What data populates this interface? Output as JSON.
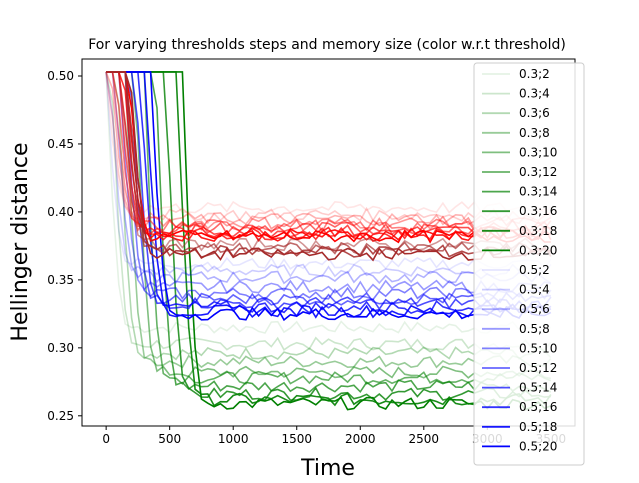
{
  "chart_data": {
    "type": "line",
    "title": "For varying thresholds steps and memory size (color w.r.t threshold)",
    "xlabel": "Time",
    "ylabel": "Hellinger distance",
    "xlim": [
      -190,
      3690
    ],
    "ylim": [
      0.2425,
      0.5125
    ],
    "x_ticks": [
      0,
      500,
      1000,
      1500,
      2000,
      2500,
      3000,
      3500
    ],
    "x_tick_labels": [
      "0",
      "500",
      "1000",
      "1500",
      "2000",
      "2500",
      "3000",
      "3500"
    ],
    "y_ticks": [
      0.25,
      0.3,
      0.35,
      0.4,
      0.45,
      0.5
    ],
    "y_tick_labels": [
      "0.25",
      "0.30",
      "0.35",
      "0.40",
      "0.45",
      "0.50"
    ],
    "grid": false,
    "legend_position": "upper-right",
    "x_range": [
      0,
      3500
    ],
    "point_step": 50,
    "start_value": 0.503,
    "series": [
      {
        "name": "0.3;2",
        "color": "#008000",
        "alpha": 0.1,
        "drop_time": 0,
        "plateau": 0.315
      },
      {
        "name": "0.3;4",
        "color": "#008000",
        "alpha": 0.2,
        "drop_time": 40,
        "plateau": 0.303
      },
      {
        "name": "0.3;6",
        "color": "#008000",
        "alpha": 0.3,
        "drop_time": 90,
        "plateau": 0.296
      },
      {
        "name": "0.3;8",
        "color": "#008000",
        "alpha": 0.4,
        "drop_time": 150,
        "plateau": 0.29
      },
      {
        "name": "0.3;10",
        "color": "#008000",
        "alpha": 0.5,
        "drop_time": 230,
        "plateau": 0.282
      },
      {
        "name": "0.3;12",
        "color": "#008000",
        "alpha": 0.6,
        "drop_time": 300,
        "plateau": 0.278
      },
      {
        "name": "0.3;14",
        "color": "#008000",
        "alpha": 0.7,
        "drop_time": 390,
        "plateau": 0.272
      },
      {
        "name": "0.3;16",
        "color": "#008000",
        "alpha": 0.8,
        "drop_time": 470,
        "plateau": 0.266
      },
      {
        "name": "0.3;18",
        "color": "#008000",
        "alpha": 0.9,
        "drop_time": 560,
        "plateau": 0.262
      },
      {
        "name": "0.3;20",
        "color": "#008000",
        "alpha": 1.0,
        "drop_time": 600,
        "plateau": 0.259
      },
      {
        "name": "0.5;2",
        "color": "#0000ff",
        "alpha": 0.1,
        "drop_time": 0,
        "plateau": 0.362
      },
      {
        "name": "0.5;4",
        "color": "#0000ff",
        "alpha": 0.2,
        "drop_time": 30,
        "plateau": 0.357
      },
      {
        "name": "0.5;6",
        "color": "#0000ff",
        "alpha": 0.3,
        "drop_time": 70,
        "plateau": 0.352
      },
      {
        "name": "0.5;8",
        "color": "#0000ff",
        "alpha": 0.4,
        "drop_time": 110,
        "plateau": 0.345
      },
      {
        "name": "0.5;10",
        "color": "#0000ff",
        "alpha": 0.5,
        "drop_time": 150,
        "plateau": 0.34
      },
      {
        "name": "0.5;12",
        "color": "#0000ff",
        "alpha": 0.6,
        "drop_time": 190,
        "plateau": 0.336
      },
      {
        "name": "0.5;14",
        "color": "#0000ff",
        "alpha": 0.7,
        "drop_time": 230,
        "plateau": 0.333
      },
      {
        "name": "0.5;16",
        "color": "#0000ff",
        "alpha": 0.8,
        "drop_time": 270,
        "plateau": 0.33
      },
      {
        "name": "0.5;18",
        "color": "#0000ff",
        "alpha": 0.9,
        "drop_time": 310,
        "plateau": 0.327
      },
      {
        "name": "0.5;20",
        "color": "#0000ff",
        "alpha": 1.0,
        "drop_time": 350,
        "plateau": 0.325
      },
      {
        "name": "",
        "color": "#ff0000",
        "alpha": 0.1,
        "drop_time": 0,
        "plateau": 0.403
      },
      {
        "name": "",
        "color": "#ff0000",
        "alpha": 0.2,
        "drop_time": 20,
        "plateau": 0.398
      },
      {
        "name": "",
        "color": "#ff0000",
        "alpha": 0.3,
        "drop_time": 40,
        "plateau": 0.395
      },
      {
        "name": "",
        "color": "#ff0000",
        "alpha": 0.4,
        "drop_time": 60,
        "plateau": 0.392
      },
      {
        "name": "",
        "color": "#ff0000",
        "alpha": 0.5,
        "drop_time": 80,
        "plateau": 0.39
      },
      {
        "name": "",
        "color": "#ff0000",
        "alpha": 0.6,
        "drop_time": 100,
        "plateau": 0.388
      },
      {
        "name": "",
        "color": "#ff0000",
        "alpha": 0.7,
        "drop_time": 120,
        "plateau": 0.386
      },
      {
        "name": "",
        "color": "#ff0000",
        "alpha": 0.8,
        "drop_time": 140,
        "plateau": 0.384
      },
      {
        "name": "",
        "color": "#ff0000",
        "alpha": 0.9,
        "drop_time": 160,
        "plateau": 0.383
      },
      {
        "name": "",
        "color": "#ff0000",
        "alpha": 1.0,
        "drop_time": 180,
        "plateau": 0.382
      },
      {
        "name": "",
        "color": "#a52a2a",
        "alpha": 0.5,
        "drop_time": 120,
        "plateau": 0.376
      },
      {
        "name": "",
        "color": "#a52a2a",
        "alpha": 0.7,
        "drop_time": 150,
        "plateau": 0.373
      },
      {
        "name": "",
        "color": "#a52a2a",
        "alpha": 0.85,
        "drop_time": 170,
        "plateau": 0.371
      },
      {
        "name": "",
        "color": "#a52a2a",
        "alpha": 1.0,
        "drop_time": 190,
        "plateau": 0.369
      }
    ]
  }
}
